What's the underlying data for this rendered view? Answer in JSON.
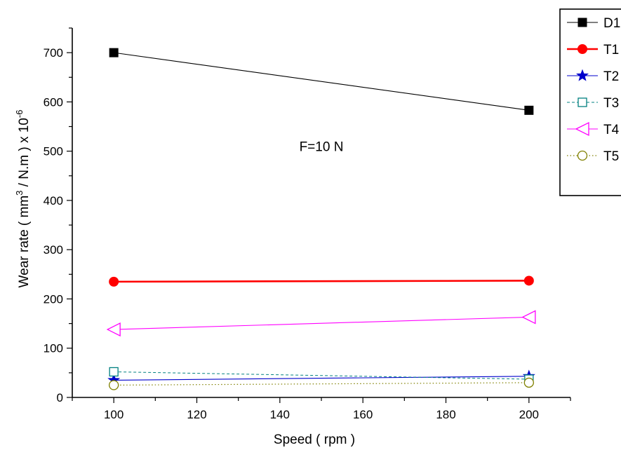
{
  "chart_data": {
    "type": "line",
    "title": "",
    "xlabel": "Speed ( rpm )",
    "ylabel_parts": [
      "Wear rate ( mm",
      "3",
      " / N.m ) x 10",
      "-6"
    ],
    "x": [
      100,
      200
    ],
    "xlim": [
      90,
      210
    ],
    "ylim": [
      0,
      750
    ],
    "xticks": [
      100,
      120,
      140,
      160,
      180,
      200
    ],
    "xtick_labels": [
      "100",
      "120",
      "140",
      "160",
      "180",
      "200"
    ],
    "yticks": [
      0,
      100,
      200,
      300,
      400,
      500,
      600,
      700
    ],
    "ytick_labels": [
      "0",
      "100",
      "200",
      "300",
      "400",
      "500",
      "600",
      "700"
    ],
    "grid": false,
    "legend_position": "top-right",
    "annotations": [
      {
        "text": "F=10 N",
        "x": 150,
        "y": 510
      }
    ],
    "series": [
      {
        "name": "D1",
        "values": [
          700,
          583
        ],
        "color": "#000000",
        "marker": "square-filled",
        "line": "solid"
      },
      {
        "name": "T1",
        "values": [
          235,
          237
        ],
        "color": "#ff0000",
        "marker": "circle-filled",
        "line": "solid-thick"
      },
      {
        "name": "T2",
        "values": [
          35,
          43
        ],
        "color": "#0000cc",
        "marker": "star-filled",
        "line": "solid"
      },
      {
        "name": "T3",
        "values": [
          52,
          37
        ],
        "color": "#008080",
        "marker": "square-open",
        "line": "dash"
      },
      {
        "name": "T4",
        "values": [
          138,
          163
        ],
        "color": "#ff00ff",
        "marker": "triangle-left-open",
        "line": "solid"
      },
      {
        "name": "T5",
        "values": [
          25,
          30
        ],
        "color": "#808000",
        "marker": "circle-open",
        "line": "dot"
      }
    ]
  }
}
